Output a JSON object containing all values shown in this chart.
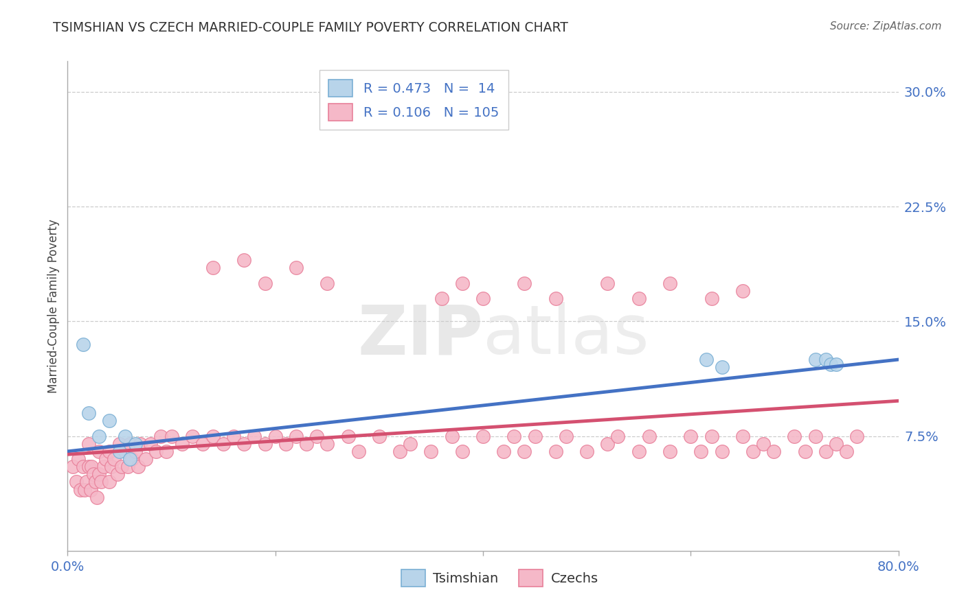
{
  "title": "TSIMSHIAN VS CZECH MARRIED-COUPLE FAMILY POVERTY CORRELATION CHART",
  "source": "Source: ZipAtlas.com",
  "ylabel": "Married-Couple Family Poverty",
  "xlim": [
    0.0,
    0.8
  ],
  "ylim": [
    0.0,
    0.32
  ],
  "grid_yticks": [
    0.075,
    0.15,
    0.225,
    0.3
  ],
  "background_color": "#ffffff",
  "tsimshian_color": "#b8d4ea",
  "tsimshian_edge_color": "#7aafd4",
  "czech_color": "#f5b8c8",
  "czech_edge_color": "#e8809a",
  "tsimshian_line_color": "#4472c4",
  "czech_line_color": "#d45070",
  "R_tsimshian": 0.473,
  "N_tsimshian": 14,
  "R_czech": 0.106,
  "N_czech": 105,
  "ts_x": [
    0.015,
    0.02,
    0.03,
    0.04,
    0.05,
    0.055,
    0.06,
    0.065,
    0.615,
    0.63,
    0.72,
    0.73,
    0.735,
    0.74
  ],
  "ts_y": [
    0.135,
    0.09,
    0.075,
    0.085,
    0.065,
    0.075,
    0.06,
    0.07,
    0.125,
    0.12,
    0.125,
    0.125,
    0.122,
    0.122
  ],
  "cz_x": [
    0.005,
    0.008,
    0.01,
    0.012,
    0.015,
    0.016,
    0.018,
    0.02,
    0.02,
    0.022,
    0.023,
    0.025,
    0.027,
    0.028,
    0.03,
    0.03,
    0.032,
    0.035,
    0.037,
    0.04,
    0.04,
    0.042,
    0.045,
    0.048,
    0.05,
    0.052,
    0.055,
    0.058,
    0.06,
    0.062,
    0.065,
    0.068,
    0.07,
    0.075,
    0.08,
    0.085,
    0.09,
    0.095,
    0.1,
    0.11,
    0.12,
    0.13,
    0.14,
    0.15,
    0.16,
    0.17,
    0.18,
    0.19,
    0.2,
    0.21,
    0.22,
    0.23,
    0.24,
    0.25,
    0.27,
    0.28,
    0.3,
    0.32,
    0.33,
    0.35,
    0.37,
    0.38,
    0.4,
    0.42,
    0.43,
    0.44,
    0.45,
    0.47,
    0.48,
    0.5,
    0.52,
    0.53,
    0.55,
    0.56,
    0.58,
    0.6,
    0.61,
    0.62,
    0.63,
    0.65,
    0.66,
    0.67,
    0.68,
    0.7,
    0.71,
    0.72,
    0.73,
    0.74,
    0.75,
    0.76,
    0.14,
    0.17,
    0.19,
    0.22,
    0.25,
    0.36,
    0.38,
    0.4,
    0.44,
    0.47,
    0.52,
    0.55,
    0.58,
    0.62,
    0.65
  ],
  "cz_y": [
    0.055,
    0.045,
    0.06,
    0.04,
    0.055,
    0.04,
    0.045,
    0.07,
    0.055,
    0.04,
    0.055,
    0.05,
    0.045,
    0.035,
    0.05,
    0.065,
    0.045,
    0.055,
    0.06,
    0.065,
    0.045,
    0.055,
    0.06,
    0.05,
    0.07,
    0.055,
    0.065,
    0.055,
    0.07,
    0.06,
    0.065,
    0.055,
    0.07,
    0.06,
    0.07,
    0.065,
    0.075,
    0.065,
    0.075,
    0.07,
    0.075,
    0.07,
    0.075,
    0.07,
    0.075,
    0.07,
    0.075,
    0.07,
    0.075,
    0.07,
    0.075,
    0.07,
    0.075,
    0.07,
    0.075,
    0.065,
    0.075,
    0.065,
    0.07,
    0.065,
    0.075,
    0.065,
    0.075,
    0.065,
    0.075,
    0.065,
    0.075,
    0.065,
    0.075,
    0.065,
    0.07,
    0.075,
    0.065,
    0.075,
    0.065,
    0.075,
    0.065,
    0.075,
    0.065,
    0.075,
    0.065,
    0.07,
    0.065,
    0.075,
    0.065,
    0.075,
    0.065,
    0.07,
    0.065,
    0.075,
    0.185,
    0.19,
    0.175,
    0.185,
    0.175,
    0.165,
    0.175,
    0.165,
    0.175,
    0.165,
    0.175,
    0.165,
    0.175,
    0.165,
    0.17
  ]
}
